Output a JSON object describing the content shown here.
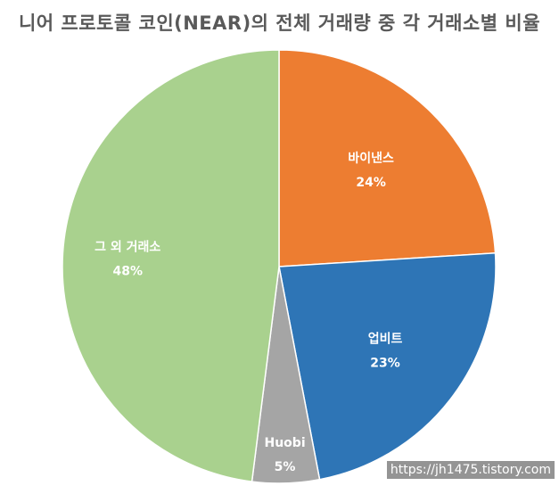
{
  "chart_data": {
    "type": "pie",
    "title": "니어 프로토콜 코인(NEAR)의 전체 거래량 중 각 거래소별 비율",
    "slices": [
      {
        "label": "바이낸스",
        "value": 24,
        "display": "24%",
        "color": "#ED7D31"
      },
      {
        "label": "업비트",
        "value": 23,
        "display": "23%",
        "color": "#2E75B6"
      },
      {
        "label": "Huobi",
        "value": 5,
        "display": "5%",
        "color": "#A5A5A5"
      },
      {
        "label": "그 외 거래소",
        "value": 48,
        "display": "48%",
        "color": "#A9D18E"
      }
    ],
    "start_angle_deg": 0,
    "direction": "clockwise",
    "legend": "none"
  },
  "watermark": "https://jh1475.tistory.com"
}
